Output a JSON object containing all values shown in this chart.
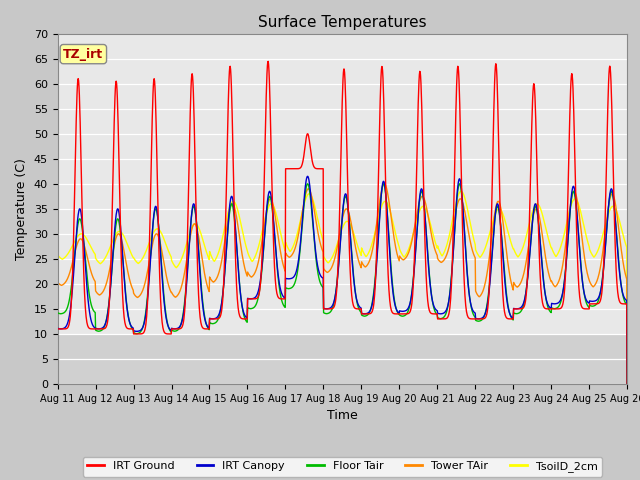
{
  "title": "Surface Temperatures",
  "xlabel": "Time",
  "ylabel": "Temperature (C)",
  "ylim": [
    0,
    70
  ],
  "yticks": [
    0,
    5,
    10,
    15,
    20,
    25,
    30,
    35,
    40,
    45,
    50,
    55,
    60,
    65,
    70
  ],
  "xtick_labels": [
    "Aug 11",
    "Aug 12",
    "Aug 13",
    "Aug 14",
    "Aug 15",
    "Aug 16",
    "Aug 17",
    "Aug 18",
    "Aug 19",
    "Aug 20",
    "Aug 21",
    "Aug 22",
    "Aug 23",
    "Aug 24",
    "Aug 25",
    "Aug 26"
  ],
  "colors": {
    "IRT Ground": "#ff0000",
    "IRT Canopy": "#0000cc",
    "Floor Tair": "#00bb00",
    "Tower TAir": "#ff8800",
    "TsoilD_2cm": "#ffff00"
  },
  "figure_bg": "#c8c8c8",
  "plot_bg_light": "#e8e8e8",
  "plot_bg_dark": "#d0d0d0",
  "annotation_text": "TZ_irt",
  "annotation_color": "#aa0000",
  "annotation_bg": "#ffffa0",
  "title_fontsize": 11,
  "axis_label_fontsize": 9,
  "tick_fontsize": 8,
  "legend_fontsize": 8,
  "n_days": 15,
  "points_per_day": 96,
  "irt_ground_peaks": [
    61,
    60.5,
    61,
    62,
    63.5,
    64.5,
    65.5,
    63,
    63.5,
    62.5,
    63.5,
    64,
    60,
    62,
    63.5
  ],
  "irt_ground_mins": [
    11,
    11,
    10,
    11,
    13,
    17,
    21,
    15,
    14,
    14,
    13,
    13,
    15,
    15,
    16
  ],
  "irt_ground_aug17_peak": 50,
  "irt_ground_aug17_min": 43,
  "irt_canopy_peaks": [
    35,
    35,
    35.5,
    36,
    37.5,
    38.5,
    41.5,
    38,
    40.5,
    39,
    41,
    36,
    36,
    39.5,
    39
  ],
  "irt_canopy_mins": [
    11,
    11,
    10.5,
    11,
    13,
    17,
    21,
    15,
    14,
    14.5,
    14,
    13,
    15,
    16,
    16.5
  ],
  "floor_tair_peaks": [
    33,
    33,
    35,
    35.5,
    36,
    37.5,
    40,
    37.5,
    40,
    38.5,
    40,
    35.5,
    35.5,
    38.5,
    38.5
  ],
  "floor_tair_mins": [
    14,
    10.5,
    10,
    10.5,
    12,
    15,
    19,
    14,
    13.5,
    13.5,
    13,
    12.5,
    14,
    15,
    15.5
  ],
  "tower_tair_peaks": [
    29,
    30,
    30,
    32,
    36,
    37,
    39,
    35,
    40,
    37.5,
    37,
    36.5,
    35,
    38.5,
    38
  ],
  "tower_tair_mins": [
    19.5,
    17.5,
    17,
    17,
    20,
    21,
    25,
    22,
    23,
    24.5,
    24,
    17,
    19,
    19,
    19
  ],
  "tsoil_peaks": [
    30,
    30.5,
    31,
    32,
    36.5,
    36,
    38,
    32.5,
    36.5,
    35.5,
    38.5,
    35,
    36,
    37,
    35.5
  ],
  "tsoil_mins": [
    24.5,
    23.5,
    23.5,
    22.5,
    23.5,
    23.5,
    25.5,
    23.5,
    24.5,
    24.5,
    24.5,
    24.5,
    24.5,
    24.5,
    24.5
  ]
}
